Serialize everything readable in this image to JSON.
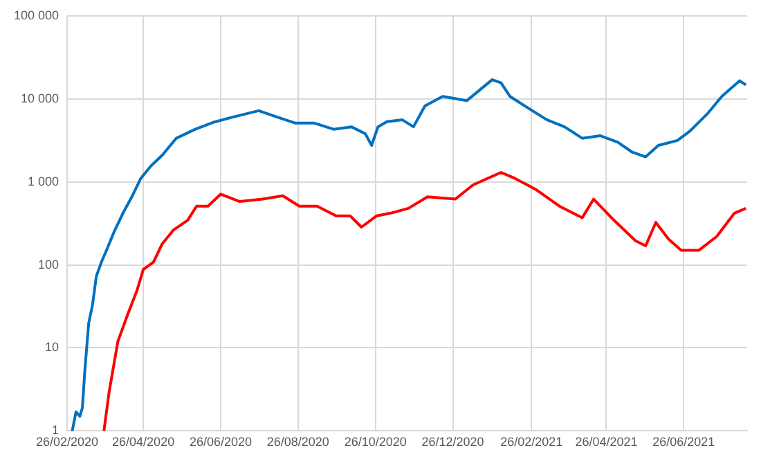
{
  "chart_data": {
    "type": "line",
    "xlim": [
      "2020-02-26",
      "2021-08-15"
    ],
    "xticks": [
      {
        "value": "2020-02-26",
        "label": "26/02/2020"
      },
      {
        "value": "2020-04-26",
        "label": "26/04/2020"
      },
      {
        "value": "2020-06-26",
        "label": "26/06/2020"
      },
      {
        "value": "2020-08-26",
        "label": "26/08/2020"
      },
      {
        "value": "2020-10-26",
        "label": "26/10/2020"
      },
      {
        "value": "2020-12-26",
        "label": "26/12/2020"
      },
      {
        "value": "2021-02-26",
        "label": "26/02/2021"
      },
      {
        "value": "2021-04-26",
        "label": "26/04/2021"
      },
      {
        "value": "2021-06-26",
        "label": "26/06/2021"
      }
    ],
    "ylim": [
      1,
      100000
    ],
    "yticks": [
      {
        "value": 1,
        "label": "1"
      },
      {
        "value": 10,
        "label": "10"
      },
      {
        "value": 100,
        "label": "100"
      },
      {
        "value": 1000,
        "label": "1 000"
      },
      {
        "value": 10000,
        "label": "10 000"
      },
      {
        "value": 100000,
        "label": "100 000"
      }
    ],
    "log": "y",
    "grid": true,
    "legend": false,
    "marker": "none",
    "line_style": "solid",
    "series": [
      {
        "color": "#0070c0",
        "x": [
          "2020-02-29",
          "2020-03-01",
          "2020-03-04",
          "2020-03-07",
          "2020-03-09",
          "2020-03-11",
          "2020-03-14",
          "2020-03-17",
          "2020-03-20",
          "2020-03-24",
          "2020-03-28",
          "2020-04-03",
          "2020-04-10",
          "2020-04-17",
          "2020-04-24",
          "2020-05-02",
          "2020-05-11",
          "2020-05-22",
          "2020-06-06",
          "2020-06-20",
          "2020-07-05",
          "2020-07-26",
          "2020-08-10",
          "2020-08-24",
          "2020-09-08",
          "2020-09-23",
          "2020-10-07",
          "2020-10-18",
          "2020-10-23",
          "2020-10-28",
          "2020-11-04",
          "2020-11-16",
          "2020-11-25",
          "2020-12-04",
          "2020-12-18",
          "2020-12-29",
          "2021-01-06",
          "2021-01-26",
          "2021-02-02",
          "2021-02-09",
          "2021-02-23",
          "2021-03-10",
          "2021-03-24",
          "2021-04-07",
          "2021-04-21",
          "2021-05-05",
          "2021-05-16",
          "2021-05-27",
          "2021-06-06",
          "2021-06-21",
          "2021-07-01",
          "2021-07-15",
          "2021-07-26",
          "2021-08-09",
          "2021-08-14"
        ],
        "values": [
          1,
          1,
          1.7,
          1.5,
          1.9,
          5.5,
          20,
          33,
          73,
          108,
          150,
          250,
          420,
          660,
          1100,
          1550,
          2100,
          3350,
          4300,
          5200,
          6000,
          7200,
          6000,
          5100,
          5100,
          4300,
          4600,
          3800,
          2750,
          4600,
          5300,
          5600,
          4600,
          8200,
          10700,
          10000,
          9500,
          17000,
          15600,
          10700,
          7800,
          5600,
          4600,
          3350,
          3600,
          3000,
          2300,
          2000,
          2750,
          3150,
          4100,
          6700,
          10700,
          16500,
          14700
        ]
      },
      {
        "color": "#ff0000",
        "x": [
          "2020-03-26",
          "2020-03-30",
          "2020-04-06",
          "2020-04-14",
          "2020-04-21",
          "2020-04-26",
          "2020-05-04",
          "2020-05-11",
          "2020-05-20",
          "2020-05-31",
          "2020-06-07",
          "2020-06-16",
          "2020-06-26",
          "2020-07-11",
          "2020-07-29",
          "2020-08-14",
          "2020-08-27",
          "2020-09-10",
          "2020-09-25",
          "2020-10-06",
          "2020-10-15",
          "2020-10-27",
          "2020-11-07",
          "2020-11-21",
          "2020-12-06",
          "2020-12-28",
          "2021-01-11",
          "2021-02-02",
          "2021-02-13",
          "2021-03-02",
          "2021-03-20",
          "2021-04-07",
          "2021-04-16",
          "2021-05-02",
          "2021-05-19",
          "2021-05-27",
          "2021-06-04",
          "2021-06-14",
          "2021-06-24",
          "2021-07-08",
          "2021-07-22",
          "2021-08-05",
          "2021-08-14"
        ],
        "values": [
          1,
          2.9,
          12,
          26,
          49,
          88,
          108,
          180,
          265,
          345,
          510,
          510,
          710,
          580,
          620,
          680,
          510,
          510,
          390,
          390,
          285,
          390,
          420,
          480,
          660,
          620,
          920,
          1300,
          1100,
          800,
          510,
          370,
          620,
          345,
          195,
          170,
          325,
          205,
          150,
          150,
          220,
          420,
          480
        ]
      }
    ]
  }
}
